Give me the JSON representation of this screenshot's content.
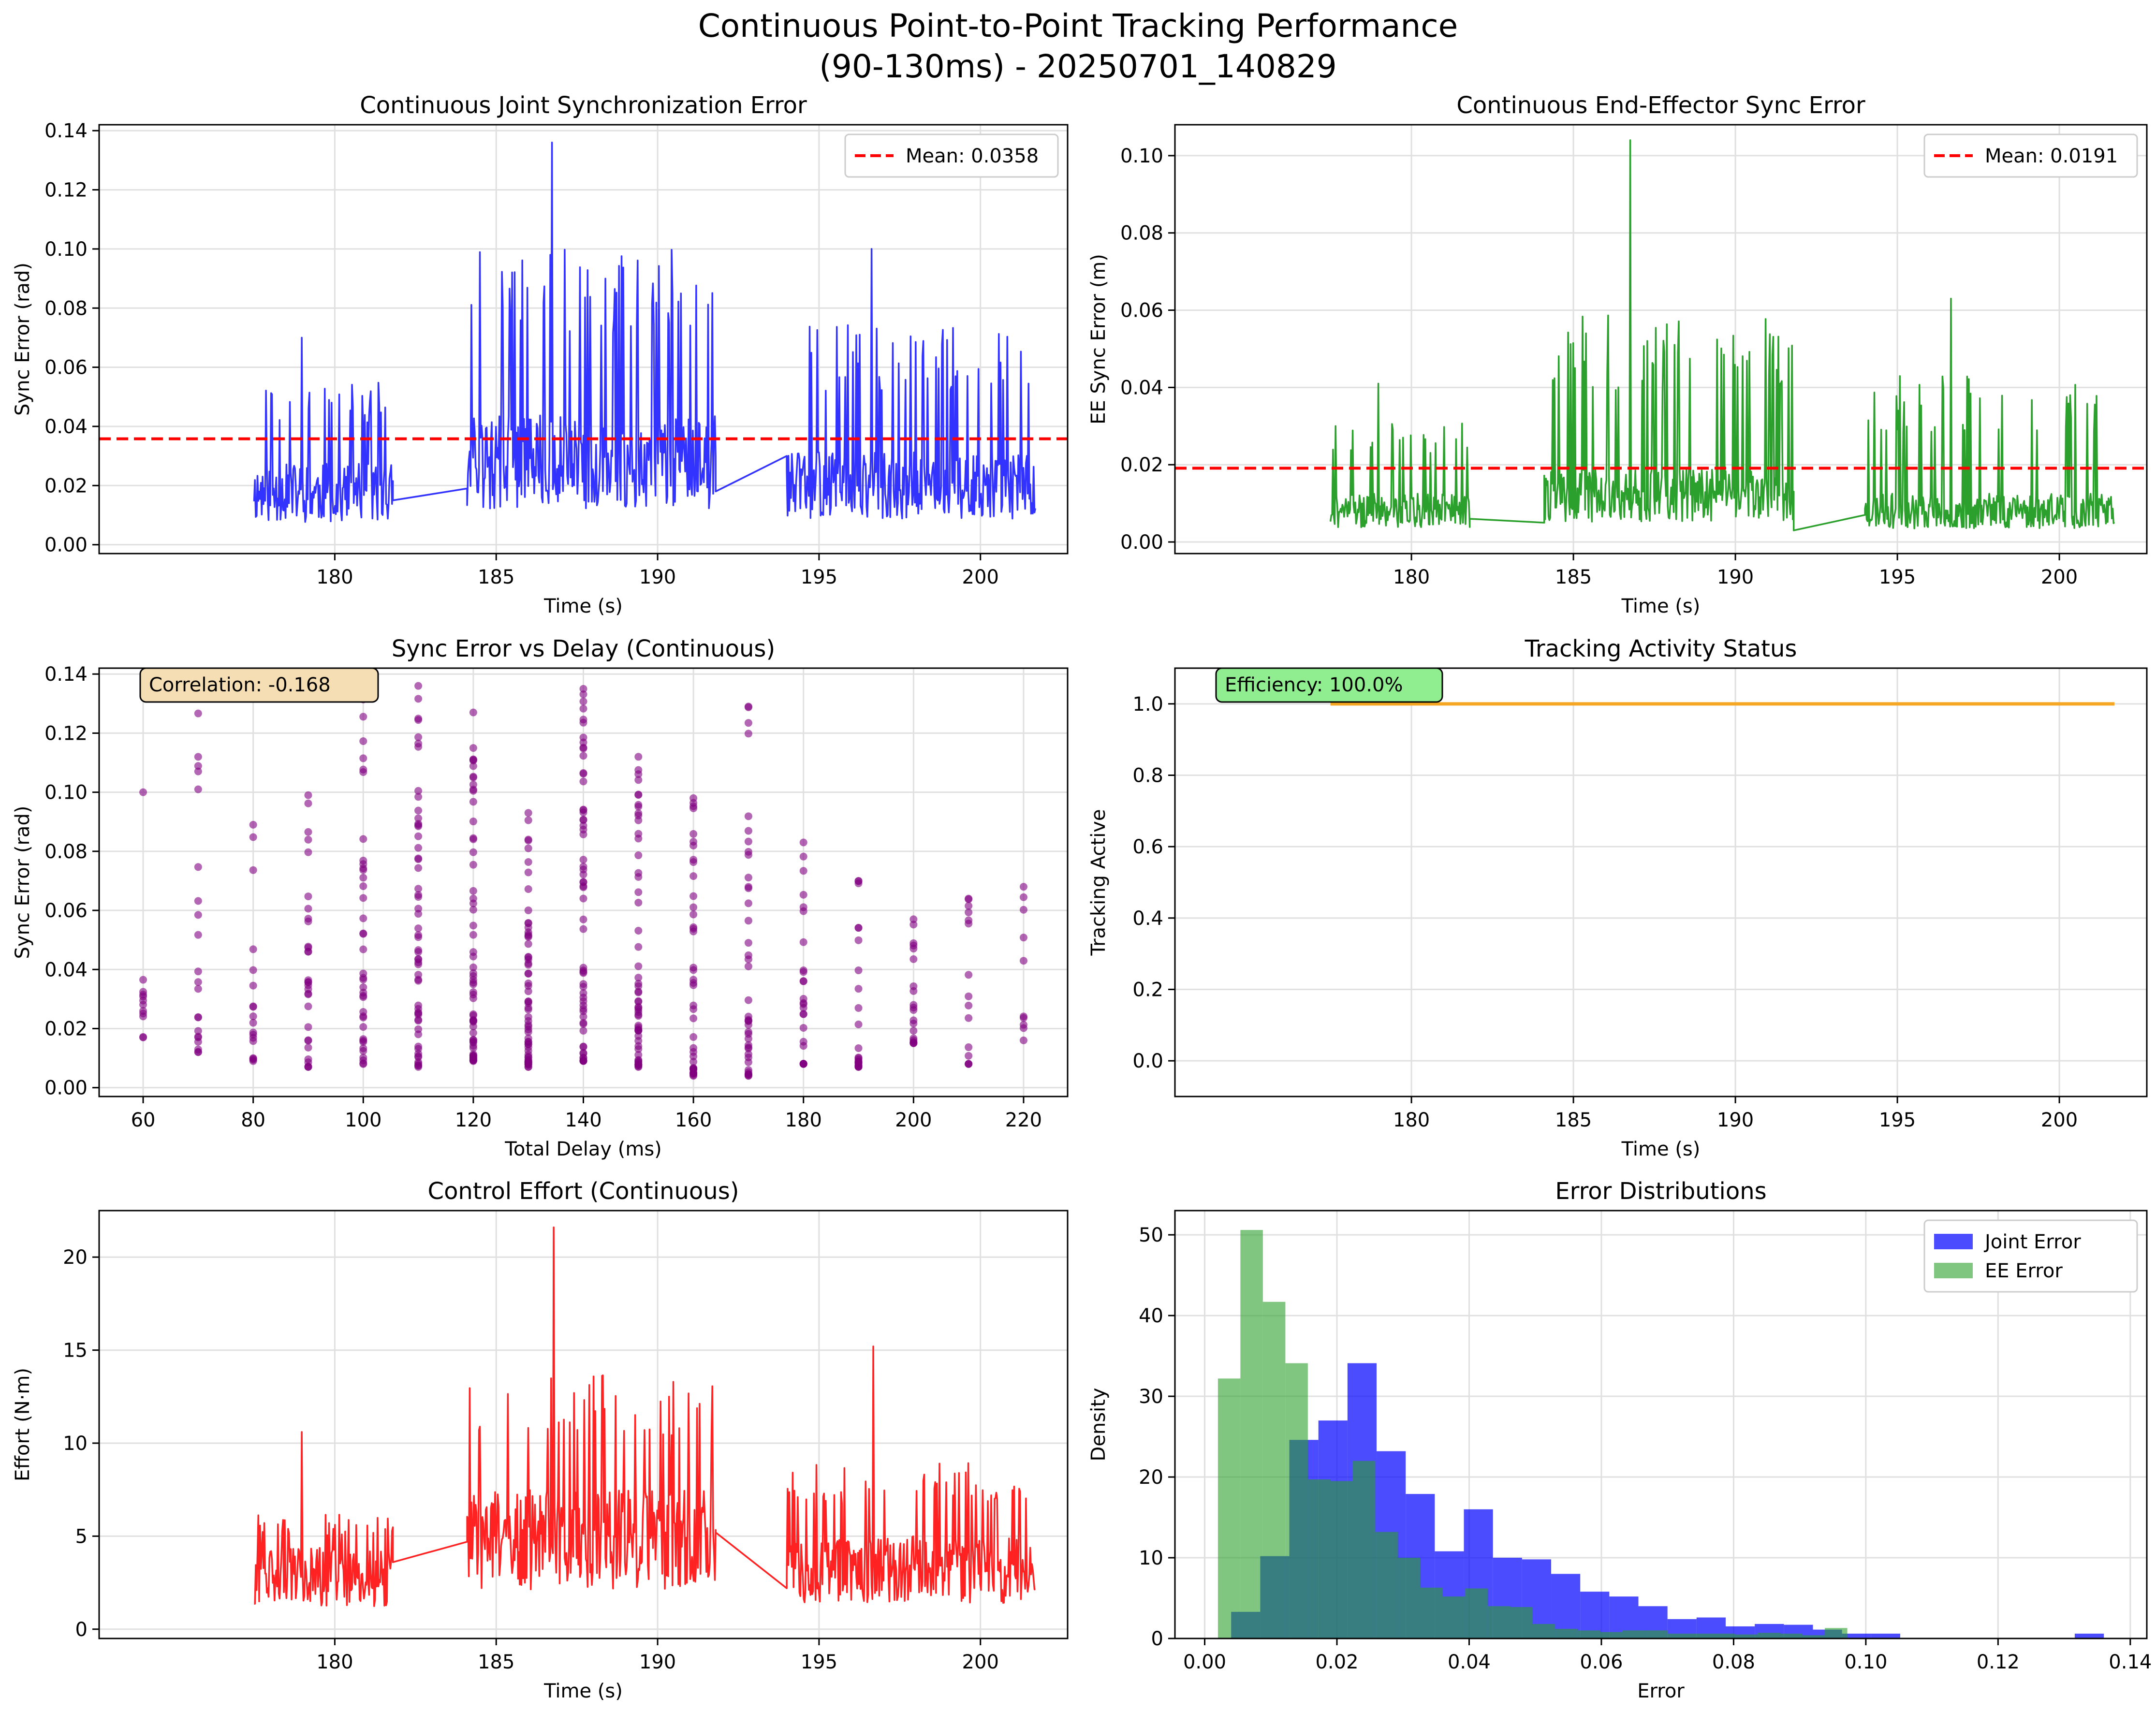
{
  "figure": {
    "title_line1": "Continuous Point-to-Point Tracking Performance",
    "title_line2": "(90-130ms) - 20250701_140829"
  },
  "colors": {
    "joint": "#3333ff",
    "ee": "#2ca02c",
    "mean": "#ff0000",
    "scatter": "#800080",
    "activity": "#f5a623",
    "effort": "#ff2222",
    "hist_joint": "#0000ff",
    "hist_ee": "#2ca02c",
    "corr_box": "#f5deb3",
    "eff_box": "#90ee90",
    "grid": "#e0e0e0"
  },
  "chart_data": [
    {
      "id": "joint-sync",
      "type": "line",
      "title": "Continuous Joint Synchronization Error",
      "xlabel": "Time (s)",
      "ylabel": "Sync Error (rad)",
      "xlim": [
        172.7,
        202.7
      ],
      "ylim": [
        -0.003,
        0.142
      ],
      "xticks": [
        180,
        185,
        190,
        195,
        200
      ],
      "yticks": [
        0.0,
        0.02,
        0.04,
        0.06,
        0.08,
        0.1,
        0.12,
        0.14
      ],
      "ytick_labels": [
        "0.00",
        "0.02",
        "0.04",
        "0.06",
        "0.08",
        "0.10",
        "0.12",
        "0.14"
      ],
      "grid": true,
      "mean": 0.0358,
      "legend": {
        "position": "upper-right",
        "entries": [
          "Mean: 0.0358"
        ]
      },
      "segments": [
        {
          "t0": 177.5,
          "t1": 181.8,
          "base": 0.022,
          "amp": 0.03,
          "peak": 0.07,
          "seed": 11
        },
        {
          "t0": 184.1,
          "t1": 191.8,
          "base": 0.035,
          "amp": 0.06,
          "peak": 0.136,
          "seed": 12
        },
        {
          "t0": 194.0,
          "t1": 201.7,
          "base": 0.025,
          "amp": 0.045,
          "peak": 0.1,
          "seed": 13
        }
      ],
      "gaps": [
        {
          "from": [
            181.8,
            0.015
          ],
          "to": [
            184.1,
            0.019
          ]
        },
        {
          "from": [
            191.8,
            0.018
          ],
          "to": [
            194.0,
            0.03
          ]
        }
      ]
    },
    {
      "id": "ee-sync",
      "type": "line",
      "title": "Continuous End-Effector Sync Error",
      "xlabel": "Time (s)",
      "ylabel": "EE Sync Error (m)",
      "xlim": [
        172.7,
        202.7
      ],
      "ylim": [
        -0.003,
        0.108
      ],
      "xticks": [
        180,
        185,
        190,
        195,
        200
      ],
      "yticks": [
        0.0,
        0.02,
        0.04,
        0.06,
        0.08,
        0.1
      ],
      "ytick_labels": [
        "0.00",
        "0.02",
        "0.04",
        "0.06",
        "0.08",
        "0.10"
      ],
      "grid": true,
      "mean": 0.0191,
      "legend": {
        "position": "upper-right",
        "entries": [
          "Mean: 0.0191"
        ]
      },
      "segments": [
        {
          "t0": 177.5,
          "t1": 181.8,
          "base": 0.01,
          "amp": 0.02,
          "peak": 0.041,
          "seed": 21
        },
        {
          "t0": 184.1,
          "t1": 191.8,
          "base": 0.015,
          "amp": 0.04,
          "peak": 0.104,
          "seed": 22
        },
        {
          "t0": 194.0,
          "t1": 201.7,
          "base": 0.01,
          "amp": 0.03,
          "peak": 0.063,
          "seed": 23
        }
      ],
      "gaps": [
        {
          "from": [
            181.8,
            0.006
          ],
          "to": [
            184.1,
            0.005
          ]
        },
        {
          "from": [
            191.8,
            0.003
          ],
          "to": [
            194.0,
            0.007
          ]
        }
      ]
    },
    {
      "id": "sync-vs-delay",
      "type": "scatter",
      "title": "Sync Error vs Delay (Continuous)",
      "xlabel": "Total Delay (ms)",
      "ylabel": "Sync Error (rad)",
      "xlim": [
        52,
        228
      ],
      "ylim": [
        -0.003,
        0.142
      ],
      "xticks": [
        60,
        80,
        100,
        120,
        140,
        160,
        180,
        200,
        220
      ],
      "yticks": [
        0.0,
        0.02,
        0.04,
        0.06,
        0.08,
        0.1,
        0.12,
        0.14
      ],
      "ytick_labels": [
        "0.00",
        "0.02",
        "0.04",
        "0.06",
        "0.08",
        "0.10",
        "0.12",
        "0.14"
      ],
      "grid": true,
      "annotation": "Correlation: -0.168",
      "columns": [
        {
          "x": 60,
          "n": 12,
          "max": 0.1,
          "min": 0.017
        },
        {
          "x": 70,
          "n": 22,
          "max": 0.132,
          "min": 0.012
        },
        {
          "x": 80,
          "n": 18,
          "max": 0.089,
          "min": 0.009
        },
        {
          "x": 90,
          "n": 30,
          "max": 0.099,
          "min": 0.007
        },
        {
          "x": 100,
          "n": 40,
          "max": 0.135,
          "min": 0.008
        },
        {
          "x": 110,
          "n": 55,
          "max": 0.136,
          "min": 0.007
        },
        {
          "x": 120,
          "n": 60,
          "max": 0.127,
          "min": 0.009
        },
        {
          "x": 130,
          "n": 60,
          "max": 0.093,
          "min": 0.007
        },
        {
          "x": 140,
          "n": 60,
          "max": 0.135,
          "min": 0.009
        },
        {
          "x": 150,
          "n": 55,
          "max": 0.112,
          "min": 0.007
        },
        {
          "x": 160,
          "n": 40,
          "max": 0.098,
          "min": 0.004
        },
        {
          "x": 170,
          "n": 40,
          "max": 0.129,
          "min": 0.004
        },
        {
          "x": 180,
          "n": 25,
          "max": 0.083,
          "min": 0.008
        },
        {
          "x": 190,
          "n": 25,
          "max": 0.07,
          "min": 0.007
        },
        {
          "x": 200,
          "n": 20,
          "max": 0.057,
          "min": 0.015
        },
        {
          "x": 210,
          "n": 15,
          "max": 0.064,
          "min": 0.008
        },
        {
          "x": 220,
          "n": 10,
          "max": 0.068,
          "min": 0.016
        }
      ]
    },
    {
      "id": "tracking-activity",
      "type": "line",
      "title": "Tracking Activity Status",
      "xlabel": "Time (s)",
      "ylabel": "Tracking Active",
      "xlim": [
        172.7,
        202.7
      ],
      "ylim": [
        -0.1,
        1.1
      ],
      "xticks": [
        180,
        185,
        190,
        195,
        200
      ],
      "yticks": [
        0.0,
        0.2,
        0.4,
        0.6,
        0.8,
        1.0
      ],
      "ytick_labels": [
        "0.0",
        "0.2",
        "0.4",
        "0.6",
        "0.8",
        "1.0"
      ],
      "grid": true,
      "annotation": "Efficiency: 100.0%",
      "x": [
        177.5,
        201.7
      ],
      "y": [
        1.0,
        1.0
      ]
    },
    {
      "id": "control-effort",
      "type": "line",
      "title": "Control Effort (Continuous)",
      "xlabel": "Time (s)",
      "ylabel": "Effort (N·m)",
      "xlim": [
        172.7,
        202.7
      ],
      "ylim": [
        -0.5,
        22.5
      ],
      "xticks": [
        180,
        185,
        190,
        195,
        200
      ],
      "yticks": [
        0,
        5,
        10,
        15,
        20
      ],
      "ytick_labels": [
        "0",
        "5",
        "10",
        "15",
        "20"
      ],
      "grid": true,
      "segments": [
        {
          "t0": 177.5,
          "t1": 181.8,
          "base": 3.5,
          "amp": 2.5,
          "peak": 10.6,
          "seed": 31
        },
        {
          "t0": 184.1,
          "t1": 191.8,
          "base": 6.0,
          "amp": 7.0,
          "peak": 21.6,
          "seed": 32
        },
        {
          "t0": 194.0,
          "t1": 201.7,
          "base": 4.0,
          "amp": 4.5,
          "peak": 15.2,
          "seed": 33
        }
      ],
      "gaps": [
        {
          "from": [
            181.8,
            3.6
          ],
          "to": [
            184.1,
            4.7
          ]
        },
        {
          "from": [
            191.8,
            5.2
          ],
          "to": [
            194.0,
            2.2
          ]
        }
      ]
    },
    {
      "id": "error-distributions",
      "type": "bar",
      "title": "Error Distributions",
      "xlabel": "Error",
      "ylabel": "Density",
      "xlim": [
        -0.0045,
        0.1425
      ],
      "ylim": [
        0,
        53
      ],
      "xticks": [
        0.0,
        0.02,
        0.04,
        0.06,
        0.08,
        0.1,
        0.12,
        0.14
      ],
      "xtick_labels": [
        "0.00",
        "0.02",
        "0.04",
        "0.06",
        "0.08",
        "0.10",
        "0.12",
        "0.14"
      ],
      "yticks": [
        0,
        10,
        20,
        30,
        40,
        50
      ],
      "ytick_labels": [
        "0",
        "10",
        "20",
        "30",
        "40",
        "50"
      ],
      "grid": true,
      "legend": {
        "position": "upper-right",
        "entries": [
          "Joint Error",
          "EE Error"
        ]
      },
      "series": [
        {
          "name": "Joint Error",
          "bin_start": 0.004,
          "bin_width": 0.0044,
          "values": [
            3.3,
            10.2,
            24.6,
            27.0,
            34.1,
            23.2,
            17.9,
            10.8,
            16.0,
            10.0,
            9.8,
            8.0,
            5.8,
            5.2,
            4.0,
            2.4,
            2.6,
            1.5,
            1.8,
            1.7,
            1.1,
            0.6,
            0.6,
            0,
            0,
            0,
            0,
            0,
            0,
            0.6
          ]
        },
        {
          "name": "EE Error",
          "bin_start": 0.002,
          "bin_width": 0.0034,
          "values": [
            32.2,
            50.6,
            41.7,
            34.1,
            19.7,
            19.5,
            22.0,
            13.2,
            10.0,
            6.3,
            5.2,
            6.2,
            4.0,
            3.9,
            1.8,
            1.2,
            1.0,
            0.8,
            1.0,
            1.0,
            0.6,
            0.6,
            0.6,
            0.5,
            0.7,
            0.6,
            0.4,
            1.3
          ]
        }
      ]
    }
  ]
}
